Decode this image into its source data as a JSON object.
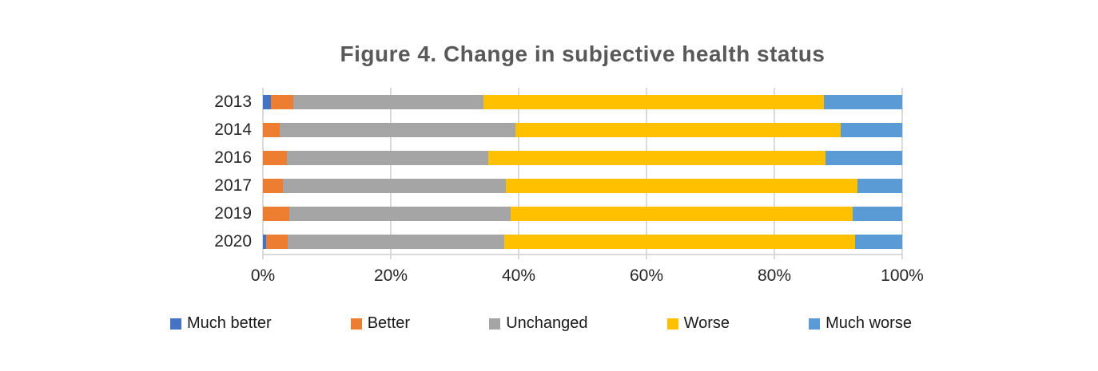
{
  "title": "Figure 4. Change in subjective health status",
  "chart_data": {
    "type": "bar",
    "subtype": "100-percent-stacked-horizontal",
    "title": "Figure 4. Change in subjective health status",
    "categories": [
      "2013",
      "2014",
      "2016",
      "2017",
      "2019",
      "2020"
    ],
    "series": [
      {
        "name": "Much better",
        "color": "#4472C4",
        "values": [
          1.2,
          0,
          0,
          0,
          0,
          0.5
        ]
      },
      {
        "name": "Better",
        "color": "#ED7D31",
        "values": [
          3.6,
          2.6,
          3.7,
          3.1,
          4.1,
          3.4
        ]
      },
      {
        "name": "Unchanged",
        "color": "#A5A5A5",
        "values": [
          29.7,
          36.9,
          31.6,
          34.9,
          34.6,
          33.9
        ]
      },
      {
        "name": "Worse",
        "color": "#FFC000",
        "values": [
          53.3,
          50.9,
          52.7,
          55.0,
          53.5,
          54.8
        ]
      },
      {
        "name": "Much worse",
        "color": "#5B9BD5",
        "values": [
          12.2,
          9.6,
          12.0,
          7.0,
          7.8,
          7.4
        ]
      }
    ],
    "x_axis": {
      "min": 0,
      "max": 100,
      "tick_interval": 20,
      "tick_labels": [
        "0%",
        "20%",
        "40%",
        "60%",
        "80%",
        "100%"
      ]
    },
    "y_axis": {
      "labels": [
        "2013",
        "2014",
        "2016",
        "2017",
        "2019",
        "2020"
      ]
    },
    "legend": {
      "position": "bottom",
      "entries": [
        "Much better",
        "Better",
        "Unchanged",
        "Worse",
        "Much worse"
      ]
    },
    "grid": "vertical",
    "stacked_total": 100
  },
  "colors": {
    "background": "#FFFFFF",
    "title_text": "#595959",
    "axis_text": "#262626",
    "legend_text": "#1A1A1A",
    "gridline": "#D9D9D9",
    "series": {
      "much_better": "#4472C4",
      "better": "#ED7D31",
      "unchanged": "#A5A5A5",
      "worse": "#FFC000",
      "much_worse": "#5B9BD5"
    }
  }
}
